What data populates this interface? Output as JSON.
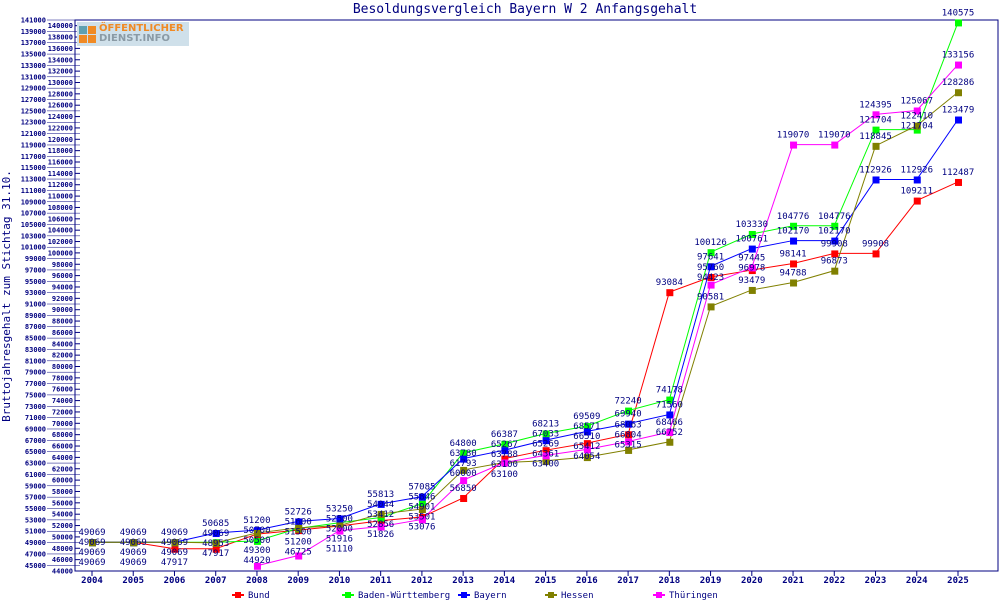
{
  "logo": {
    "line1": "ÖFFENTLICHER",
    "line2": "DIENST.INFO"
  },
  "chart_data": {
    "type": "line",
    "title": "Besoldungsvergleich Bayern W 2 Anfangsgehalt",
    "xlabel": "",
    "ylabel": "Bruttojahresgehalt zum Stichtag 31.10.",
    "ylim": [
      44000,
      141000
    ],
    "ytick_step": 1000,
    "grid": false,
    "legend_position": "bottom",
    "x": [
      "2004",
      "2005",
      "2006",
      "2007",
      "2008",
      "2009",
      "2010",
      "2011",
      "2012",
      "2013",
      "2014",
      "2015",
      "2016",
      "2017",
      "2018",
      "2019",
      "2020",
      "2021",
      "2022",
      "2023",
      "2024",
      "2025"
    ],
    "series": [
      {
        "name": "Bund",
        "color": "#ff0000",
        "values": [
          49069,
          49069,
          47917,
          47917,
          50500,
          51200,
          51916,
          52856,
          53501,
          56850,
          63788,
          65269,
          66510,
          68063,
          93084,
          95760,
          96978,
          98141,
          99908,
          99908,
          109211,
          112487
        ]
      },
      {
        "name": "Baden-Württemberg",
        "color": "#00ff00",
        "values": [
          49069,
          49069,
          49069,
          49069,
          49300,
          51500,
          52500,
          53412,
          55846,
          64800,
          66387,
          68213,
          69509,
          72240,
          74178,
          100126,
          103330,
          104776,
          104776,
          121704,
          121704,
          140575
        ]
      },
      {
        "name": "Bayern",
        "color": "#0000ff",
        "values": [
          49069,
          49069,
          49069,
          50685,
          51200,
          52726,
          53250,
          55813,
          57085,
          63780,
          65267,
          67033,
          68571,
          69940,
          71560,
          97641,
          100761,
          102170,
          102170,
          112926,
          112926,
          123479
        ]
      },
      {
        "name": "Hessen",
        "color": "#808000",
        "values": [
          49069,
          49069,
          49069,
          48953,
          50700,
          51600,
          52000,
          54044,
          54901,
          61793,
          63100,
          63400,
          64054,
          65315,
          66752,
          90581,
          93479,
          94788,
          96873,
          118845,
          122410,
          128286
        ]
      },
      {
        "name": "Thüringen",
        "color": "#ff00ff",
        "values": [
          null,
          null,
          null,
          null,
          44920,
          46725,
          51110,
          51826,
          53076,
          60000,
          63100,
          64361,
          65412,
          66804,
          68466,
          94423,
          97445,
          119070,
          119070,
          124395,
          125067,
          133156
        ]
      }
    ]
  }
}
